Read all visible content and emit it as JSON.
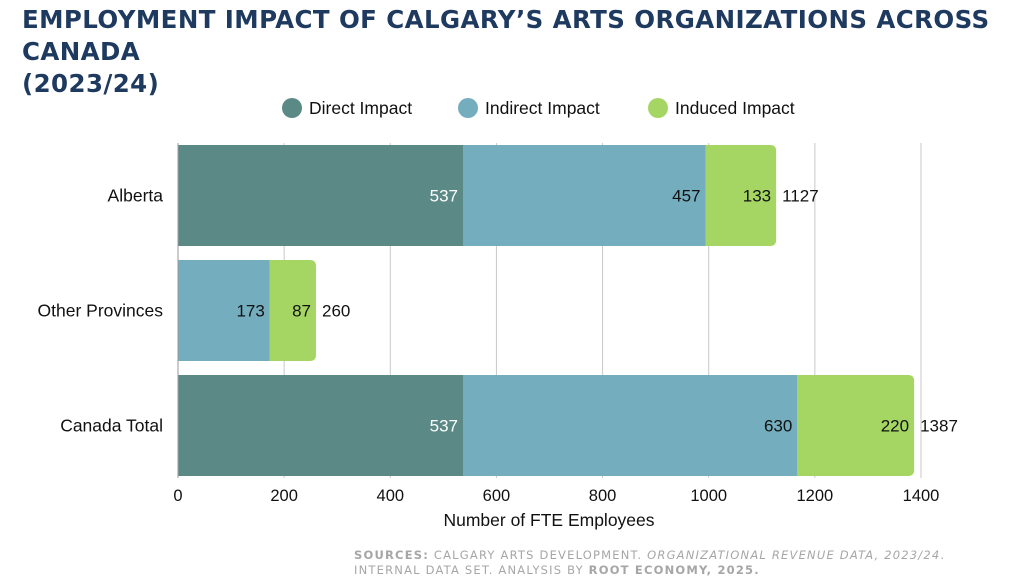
{
  "title": {
    "line1": "EMPLOYMENT IMPACT OF CALGARY’S ARTS ORGANIZATIONS ACROSS CANADA",
    "line2": "(2023/24)"
  },
  "source": {
    "label": "SOURCES:",
    "text1": "CALGARY ARTS DEVELOPMENT.",
    "italic1": "ORGANIZATIONAL REVENUE DATA, 2023/24",
    "text2": ". INTERNAL DATA SET. ANALYSIS BY",
    "bold_end": "ROOT ECONOMY, 2025."
  },
  "chart_data": {
    "type": "bar",
    "orientation": "horizontal",
    "stacked": true,
    "categories": [
      "Alberta",
      "Other Provinces",
      "Canada Total"
    ],
    "series": [
      {
        "name": "Direct Impact",
        "color": "#5b8a86",
        "values": [
          537,
          0,
          537
        ]
      },
      {
        "name": "Indirect Impact",
        "color": "#74adbd",
        "values": [
          457,
          173,
          630
        ]
      },
      {
        "name": "Induced Impact",
        "color": "#a5d663",
        "values": [
          133,
          87,
          220
        ]
      }
    ],
    "totals": [
      1127,
      260,
      1387
    ],
    "xlabel": "Number of FTE Employees",
    "xlim": [
      0,
      1400
    ],
    "xticks": [
      0,
      200,
      400,
      600,
      800,
      1000,
      1200,
      1400
    ],
    "legend": "top"
  }
}
